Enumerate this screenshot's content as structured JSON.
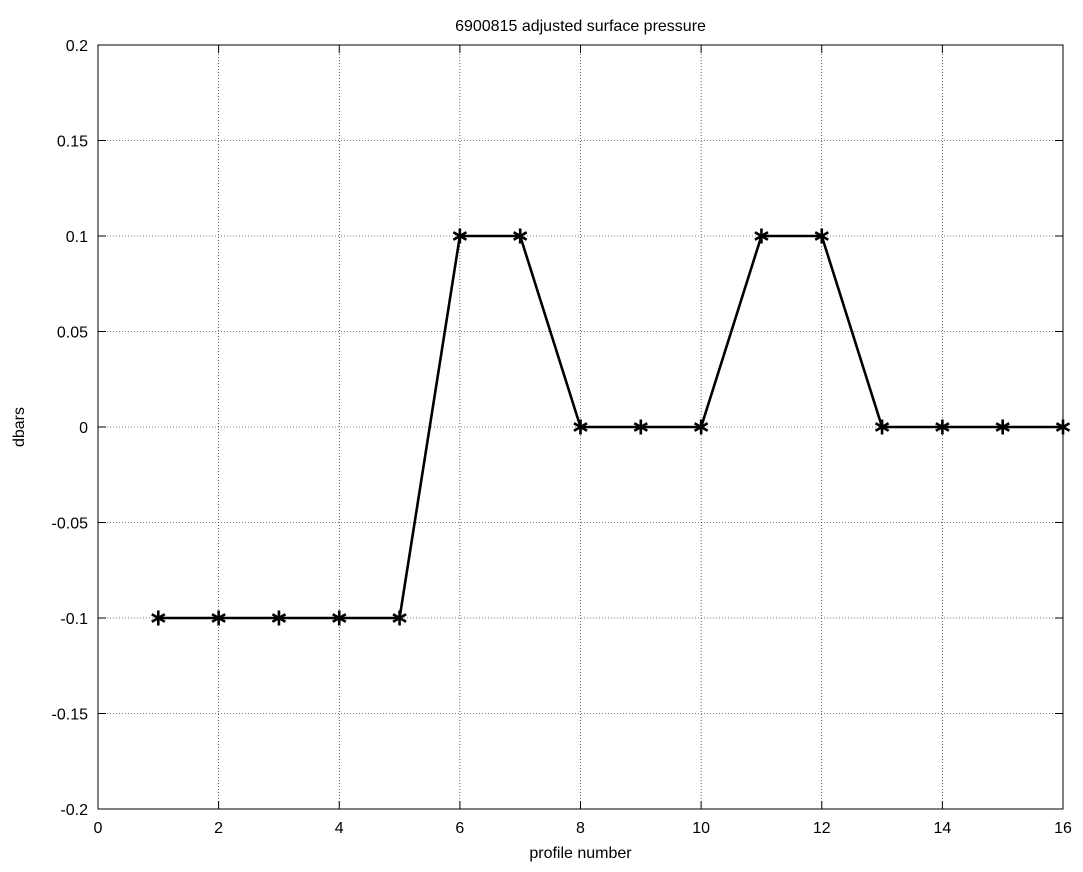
{
  "chart_data": {
    "type": "line",
    "title": "6900815 adjusted surface pressure",
    "xlabel": "profile number",
    "ylabel": "dbars",
    "xlim": [
      0,
      16
    ],
    "ylim": [
      -0.2,
      0.2
    ],
    "grid": true,
    "x_ticks": [
      0,
      2,
      4,
      6,
      8,
      10,
      12,
      14,
      16
    ],
    "y_ticks": [
      -0.2,
      -0.15,
      -0.1,
      -0.05,
      0,
      0.05,
      0.1,
      0.15,
      0.2
    ],
    "x_tick_labels": [
      "0",
      "2",
      "4",
      "6",
      "8",
      "10",
      "12",
      "14",
      "16"
    ],
    "y_tick_labels": [
      "-0.2",
      "-0.15",
      "-0.1",
      "-0.05",
      "0",
      "0.05",
      "0.1",
      "0.15",
      "0.2"
    ],
    "series": [
      {
        "color": "#000000",
        "marker": "asterisk",
        "x": [
          1,
          2,
          3,
          4,
          5,
          6,
          7,
          8,
          9,
          10,
          11,
          12,
          13,
          14,
          15,
          16
        ],
        "y": [
          -0.1,
          -0.1,
          -0.1,
          -0.1,
          -0.1,
          0.1,
          0.1,
          0,
          0,
          0,
          0.1,
          0.1,
          0,
          0,
          0,
          0
        ]
      }
    ]
  }
}
